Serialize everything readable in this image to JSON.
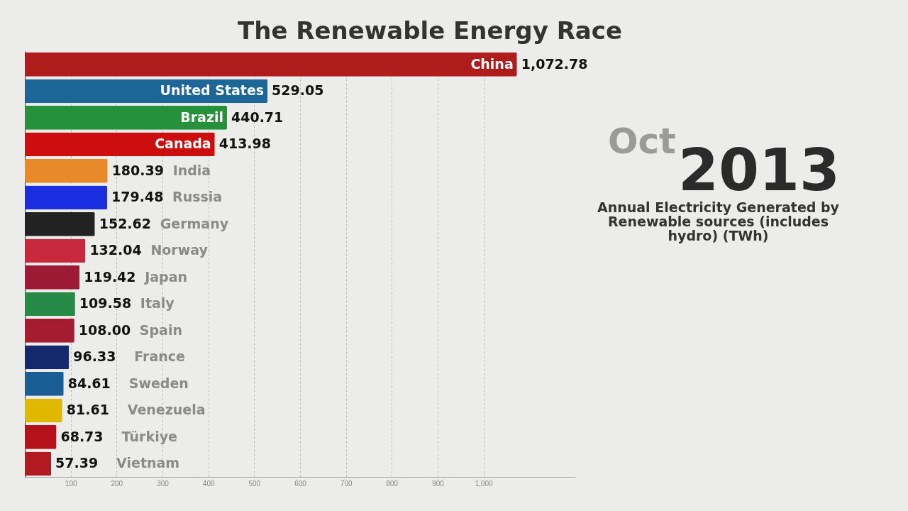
{
  "chart_data": {
    "type": "bar",
    "orientation": "horizontal",
    "title": "The Renewable Energy Race",
    "categories": [
      "China",
      "United States",
      "Brazil",
      "Canada",
      "India",
      "Russia",
      "Germany",
      "Norway",
      "Japan",
      "Italy",
      "Spain",
      "France",
      "Sweden",
      "Venezuela",
      "Türkiye",
      "Vietnam"
    ],
    "values": [
      1072.78,
      529.05,
      440.71,
      413.98,
      180.39,
      179.48,
      152.62,
      132.04,
      119.42,
      109.58,
      108.0,
      96.33,
      84.61,
      81.61,
      68.73,
      57.39
    ],
    "value_labels": [
      "1,072.78",
      "529.05",
      "440.71",
      "413.98",
      "180.39",
      "179.48",
      "152.62",
      "132.04",
      "119.42",
      "109.58",
      "108.00",
      "96.33",
      "84.61",
      "81.61",
      "68.73",
      "57.39"
    ],
    "colors": [
      "#b01c1c",
      "#1c6698",
      "#25913a",
      "#cc0e0e",
      "#e8892a",
      "#1a30e0",
      "#222222",
      "#c8283c",
      "#9c1a34",
      "#258a45",
      "#a51c30",
      "#14286e",
      "#1a5e96",
      "#e0b800",
      "#b5121b",
      "#b01a20"
    ],
    "xlim": [
      0,
      1200
    ],
    "xticks": [
      100,
      200,
      300,
      400,
      500,
      600,
      700,
      800,
      900,
      {
        "value": 1000,
        "label": "1,000"
      }
    ],
    "grid": "x",
    "legend": false,
    "annotations": [
      "Oct",
      "2013",
      "Annual Electricity Generated by Renewable sources (includes hydro) (TWh)"
    ]
  }
}
